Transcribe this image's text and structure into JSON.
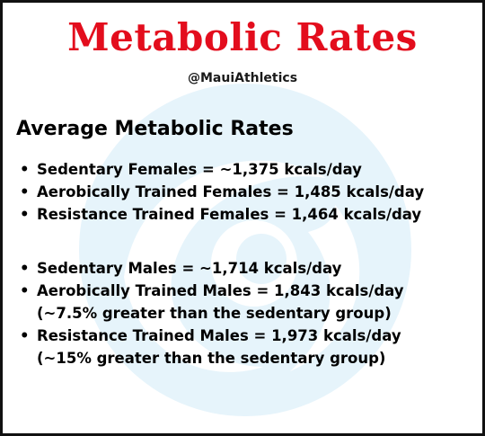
{
  "title": "Metabolic Rates",
  "handle": "@MauiAthletics",
  "heading": "Average Metabolic Rates",
  "females": [
    {
      "text": "Sedentary Females = ~1,375 kcals/day"
    },
    {
      "text": "Aerobically Trained Females = 1,485 kcals/day"
    },
    {
      "text": "Resistance Trained Females = 1,464 kcals/day"
    }
  ],
  "males": [
    {
      "text": "Sedentary Males = ~1,714 kcals/day"
    },
    {
      "text": "Aerobically Trained Males = 1,843 kcals/day",
      "note": "(~7.5% greater than the sedentary group)"
    },
    {
      "text": "Resistance Trained Males = 1,973 kcals/day",
      "note": "(~15% greater than the sedentary group)"
    }
  ],
  "bullet": "•",
  "colors": {
    "title": "#e30d1d",
    "watermark": "#e6f4fb",
    "border": "#111111"
  },
  "icons": {
    "watermark": "swirl-logo-watermark"
  }
}
